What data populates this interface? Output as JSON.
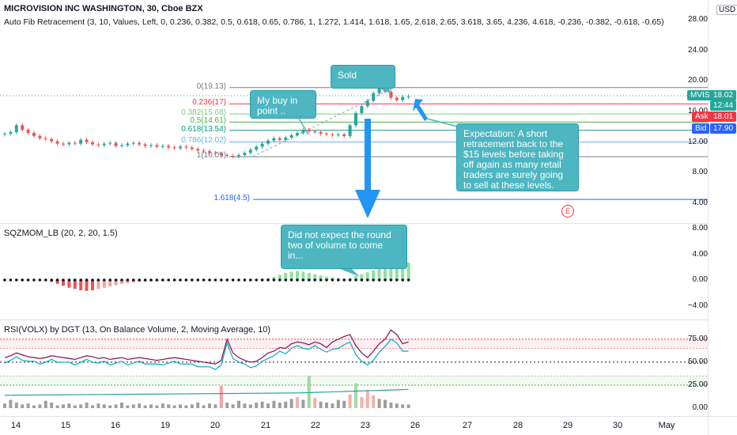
{
  "header": {
    "symbol_title": "MICROVISION INC WASHINGTON, 30, Cboe BZX",
    "indicator_fib": "Auto Fib Retracement (3, 10, Values, Left, 0, 0.236, 0.382, 0.5, 0.618, 0.65, 0.786, 1, 1.272, 1.414, 1.618, 1.65, 2.618, 2.65, 3.618, 3.65, 4.236, 4.618, -0.236, -0.382, -0.618, -0.65)",
    "currency": "USD"
  },
  "price_axis": {
    "labels": [
      "28.00",
      "24.00",
      "20.00",
      "16.00",
      "12.00",
      "8.00",
      "4.00"
    ],
    "values": [
      28,
      24,
      20,
      16,
      12,
      8,
      4
    ]
  },
  "price_tags": {
    "symbol": "MVIS",
    "last": "18.02",
    "countdown": "12:44",
    "ask_label": "Ask",
    "ask": "18.01",
    "bid_label": "Bid",
    "bid": "17.90"
  },
  "fib_levels": [
    {
      "label": "0(19.13)",
      "price": 19.13,
      "color": "#787b86"
    },
    {
      "label": "0.236(17)",
      "price": 17,
      "color": "#f23645"
    },
    {
      "label": "0.382(15.68)",
      "price": 15.68,
      "color": "#81c784"
    },
    {
      "label": "0.5(14.61)",
      "price": 14.61,
      "color": "#4caf50"
    },
    {
      "label": "0.618(13.54)",
      "price": 13.54,
      "color": "#089981"
    },
    {
      "label": "0.786(12.02)",
      "price": 12.02,
      "color": "#64b5f6"
    },
    {
      "label": "1(10.09)",
      "price": 10.09,
      "color": "#787b86"
    },
    {
      "label": "1.618(4.5)",
      "price": 4.5,
      "color": "#2962ff"
    }
  ],
  "notes": {
    "sold": "Sold",
    "buy": "My buy in point ..",
    "expectation": "Expectation: A short retracement back to the $15 levels before taking off again as many retail traders are surely going to sell at these levels.",
    "volume": "Did not expect the round two of volume to come in..."
  },
  "earnings_marker": "E",
  "sqzmom": {
    "title": "SQZMOM_LB (20, 2, 20, 1.5)",
    "axis_labels": [
      "8.00",
      "4.00",
      "0.00",
      "−4.00"
    ],
    "axis_values": [
      8,
      4,
      0,
      -4
    ]
  },
  "rsi": {
    "title": "RSI(VOLX) by DGT (13, On Balance Volume, 2, Moving Average, 10)",
    "axis_labels": [
      "75.00",
      "50.00",
      "25.00",
      "0.00"
    ],
    "axis_values": [
      75,
      50,
      25,
      0
    ]
  },
  "time_axis": {
    "labels": [
      "14",
      "15",
      "16",
      "19",
      "20",
      "21",
      "22",
      "23",
      "26",
      "27",
      "28",
      "29",
      "30",
      "May"
    ]
  },
  "colors": {
    "up": "#26a69a",
    "down": "#ef5350",
    "note_bg": "#4db6c1",
    "arrow": "#2196f3",
    "mvis_tag": "#26a69a",
    "ask_tag": "#f23645",
    "bid_tag": "#2962ff"
  }
}
